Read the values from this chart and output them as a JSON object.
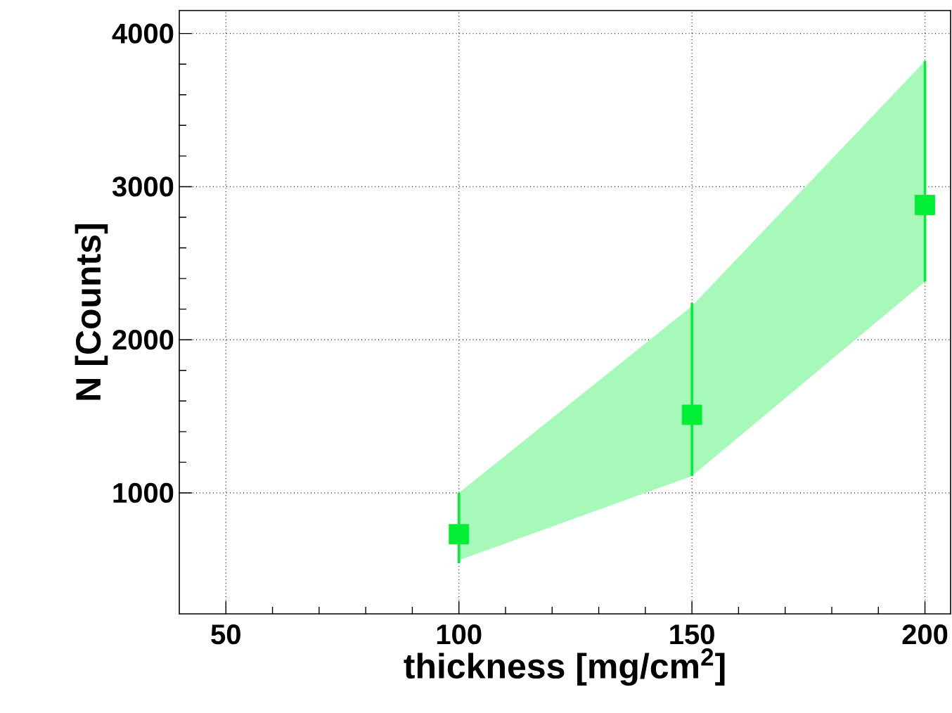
{
  "chart_data": {
    "type": "scatter",
    "xlabel": "thickness [mg/cm$^{2}$]",
    "ylabel": "N [Counts]",
    "x": [
      100,
      150,
      200
    ],
    "series": [
      {
        "color": "#00ee33",
        "values": [
          730,
          1510,
          2880
        ],
        "errors": [
          [
            540,
            1000
          ],
          [
            1110,
            2240
          ],
          [
            2380,
            3820
          ]
        ],
        "lower": [
          560,
          1110,
          2380
        ],
        "upper": [
          1000,
          2220,
          3820
        ]
      }
    ],
    "xlim": [
      40,
      205.5
    ],
    "ylim": [
      210,
      4150
    ],
    "xticks": [
      50,
      100,
      150,
      200
    ],
    "yticks": [
      1000,
      2000,
      3000,
      4000
    ],
    "grid": true,
    "marker": "square"
  }
}
